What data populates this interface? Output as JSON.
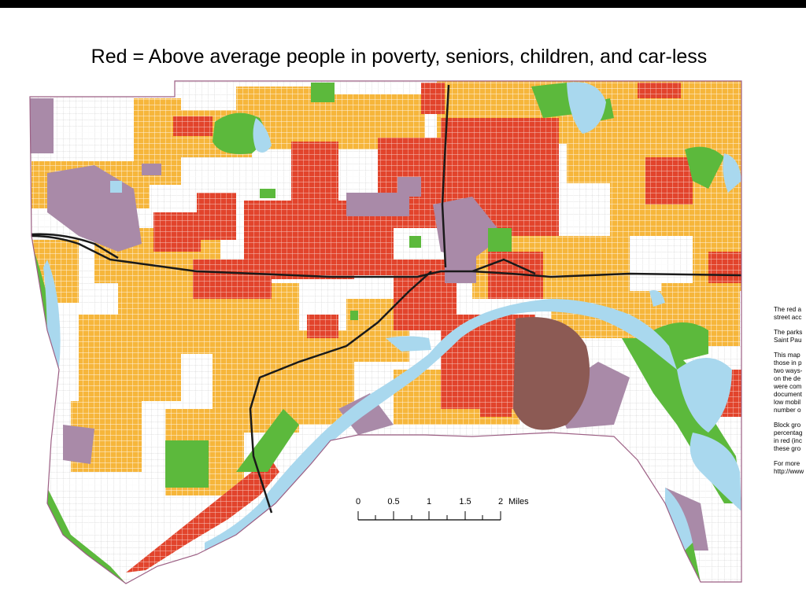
{
  "title": "Red = Above average people in poverty, seniors, children, and car-less",
  "legend_colors": {
    "red_block_groups": "#e2442c",
    "orange_block_groups": "#f6b63b",
    "parks": "#5cb93c",
    "water": "#a9d8ee",
    "industrial": "#a98aa8",
    "airport": "#8c5a54",
    "highways": "#1a1a1a",
    "streets": "#c9c9c9",
    "boundary": "#9c5f84"
  },
  "scale_bar": {
    "ticks": [
      "0",
      "0.5",
      "1",
      "1.5",
      "2"
    ],
    "unit": "Miles"
  },
  "notes": [
    [
      "The red a",
      "street acc"
    ],
    [
      "The parks",
      "Saint Pau"
    ],
    [
      "This map",
      "those in p",
      "two ways-",
      "on the de",
      "were com",
      "document",
      "low mobil",
      "number o"
    ],
    [
      "Block gro",
      "percentag",
      "in red (inc",
      "these gro"
    ],
    [
      "For more",
      "http://www"
    ]
  ]
}
